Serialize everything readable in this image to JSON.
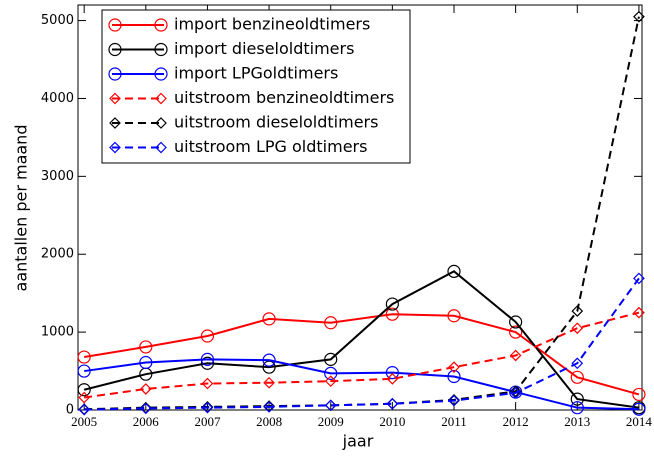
{
  "chart_data": {
    "type": "line",
    "xlabel": "jaar",
    "ylabel": "aantallen per maand",
    "x": [
      2005,
      2006,
      2007,
      2008,
      2009,
      2010,
      2011,
      2012,
      2013,
      2014
    ],
    "xlim": [
      2004.9,
      2014.05
    ],
    "ylim": [
      0,
      5200
    ],
    "xticks": [
      2005,
      2006,
      2007,
      2008,
      2009,
      2010,
      2011,
      2012,
      2013,
      2014
    ],
    "yticks": [
      0,
      1000,
      2000,
      3000,
      4000,
      5000
    ],
    "legend": "upper-left",
    "series": [
      {
        "name": "import benzineoldtimers",
        "color": "#ff0000",
        "dash": "solid",
        "marker": "circle",
        "values": [
          680,
          810,
          950,
          1170,
          1120,
          1230,
          1210,
          1000,
          420,
          200
        ]
      },
      {
        "name": "import dieseloldtimers",
        "color": "#000000",
        "dash": "solid",
        "marker": "circle",
        "values": [
          260,
          460,
          600,
          550,
          650,
          1360,
          1780,
          1130,
          140,
          30
        ]
      },
      {
        "name": "import LPGoldtimers",
        "color": "#0000ff",
        "dash": "solid",
        "marker": "circle",
        "values": [
          500,
          610,
          650,
          640,
          470,
          480,
          430,
          230,
          30,
          10
        ]
      },
      {
        "name": "uitstroom benzineoldtimers",
        "color": "#ff0000",
        "dash": "dashed",
        "marker": "diamond",
        "values": [
          160,
          270,
          340,
          350,
          370,
          400,
          550,
          700,
          1050,
          1250
        ]
      },
      {
        "name": "uitstroom dieseloldtimers",
        "color": "#000000",
        "dash": "dashed",
        "marker": "diamond",
        "values": [
          10,
          30,
          40,
          50,
          60,
          80,
          130,
          240,
          1270,
          5050
        ]
      },
      {
        "name": "uitstroom LPG oldtimers",
        "color": "#0000ff",
        "dash": "dashed",
        "marker": "diamond",
        "values": [
          5,
          20,
          30,
          40,
          60,
          80,
          120,
          220,
          600,
          1690
        ]
      }
    ]
  }
}
